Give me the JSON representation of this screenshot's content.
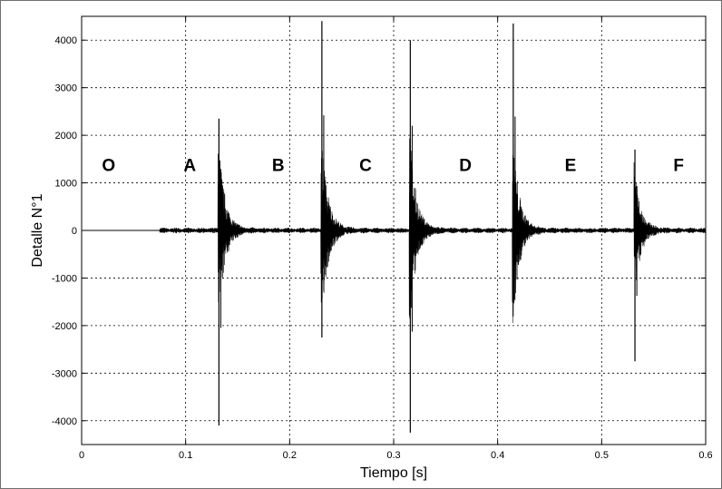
{
  "chart_data": {
    "type": "line",
    "title": "",
    "xlabel": "Tiempo [s]",
    "ylabel": "Detalle N°1",
    "xlim": [
      0,
      0.6
    ],
    "ylim": [
      -4500,
      4500
    ],
    "xticks": [
      0,
      0.1,
      0.2,
      0.3,
      0.4,
      0.5,
      0.6
    ],
    "xtick_labels": [
      "0",
      "0.1",
      "0.2",
      "0.3",
      "0.4",
      "0.5",
      "0.6"
    ],
    "yticks": [
      -4000,
      -3000,
      -2000,
      -1000,
      0,
      1000,
      2000,
      3000,
      4000
    ],
    "ytick_labels": [
      "-4000",
      "-3000",
      "-2000",
      "-1000",
      "0",
      "1000",
      "2000",
      "3000",
      "4000"
    ],
    "grid": true,
    "line_color": "#000000",
    "noise_start": 0.075,
    "noise_amplitude": 60,
    "spikes": [
      {
        "t": 0.132,
        "max": 2350,
        "min": -4100
      },
      {
        "t": 0.231,
        "max": 4400,
        "min": -2250
      },
      {
        "t": 0.316,
        "max": 4000,
        "min": -4250
      },
      {
        "t": 0.415,
        "max": 4350,
        "min": -1450
      },
      {
        "t": 0.532,
        "max": 1700,
        "min": -2750
      }
    ],
    "segment_labels": [
      {
        "text": "O",
        "x": 0.026,
        "y": 1250
      },
      {
        "text": "A",
        "x": 0.104,
        "y": 1250
      },
      {
        "text": "B",
        "x": 0.189,
        "y": 1250
      },
      {
        "text": "C",
        "x": 0.273,
        "y": 1250
      },
      {
        "text": "D",
        "x": 0.369,
        "y": 1250
      },
      {
        "text": "E",
        "x": 0.47,
        "y": 1250
      },
      {
        "text": "F",
        "x": 0.574,
        "y": 1250
      }
    ]
  }
}
